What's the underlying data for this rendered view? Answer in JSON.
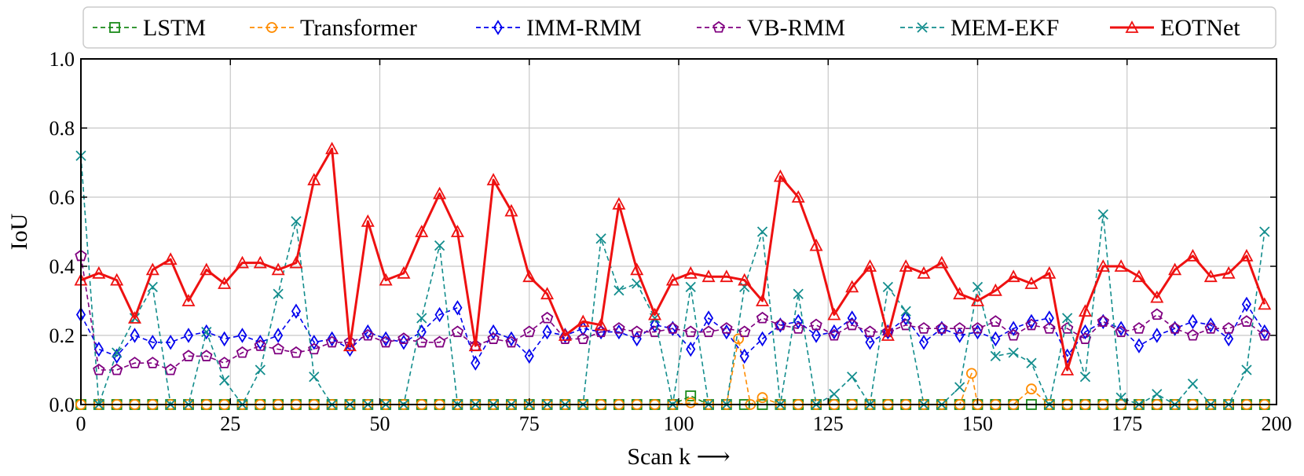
{
  "chart_data": {
    "type": "line",
    "xlabel": "Scan k ⟶",
    "ylabel": "IoU",
    "xlim": [
      0,
      200
    ],
    "ylim": [
      0,
      1.0
    ],
    "xticks": [
      "0",
      "25",
      "50",
      "75",
      "100",
      "125",
      "150",
      "175",
      "200"
    ],
    "yticks": [
      "0.0",
      "0.2",
      "0.4",
      "0.6",
      "0.8",
      "1.0"
    ],
    "grid": true,
    "legend": "top",
    "series": [
      {
        "name": "LSTM",
        "color": "#1a8a1a",
        "marker": "square",
        "style": "dashed",
        "x": [
          0,
          3,
          6,
          9,
          12,
          15,
          18,
          21,
          24,
          27,
          30,
          33,
          36,
          39,
          42,
          45,
          48,
          51,
          54,
          57,
          60,
          63,
          66,
          69,
          72,
          75,
          78,
          81,
          84,
          87,
          90,
          93,
          96,
          99,
          102,
          105,
          108,
          111,
          114,
          117,
          120,
          123,
          126,
          129,
          132,
          135,
          138,
          141,
          144,
          147,
          150,
          153,
          156,
          159,
          162,
          165,
          168,
          171,
          174,
          177,
          180,
          183,
          186,
          189,
          192,
          195,
          198
        ],
        "y": [
          0,
          0,
          0,
          0,
          0,
          0,
          0,
          0,
          0,
          0,
          0,
          0,
          0,
          0,
          0,
          0,
          0,
          0,
          0,
          0,
          0,
          0,
          0,
          0,
          0,
          0,
          0,
          0,
          0,
          0,
          0,
          0,
          0,
          0,
          0.025,
          0,
          0,
          0,
          0,
          0,
          0,
          0,
          0,
          0,
          0,
          0,
          0,
          0,
          0,
          0,
          0,
          0,
          0,
          0,
          0,
          0,
          0,
          0,
          0,
          0,
          0,
          0,
          0,
          0,
          0,
          0,
          0
        ]
      },
      {
        "name": "Transformer",
        "color": "#ff8c00",
        "marker": "circle",
        "style": "dashed",
        "x": [
          0,
          3,
          6,
          9,
          12,
          15,
          18,
          21,
          24,
          27,
          30,
          33,
          36,
          39,
          42,
          45,
          48,
          51,
          54,
          57,
          60,
          63,
          66,
          69,
          72,
          75,
          78,
          81,
          84,
          87,
          90,
          93,
          96,
          99,
          102,
          105,
          108,
          110,
          112,
          114,
          117,
          120,
          123,
          126,
          129,
          132,
          135,
          138,
          141,
          144,
          147,
          149,
          150,
          153,
          156,
          159,
          162,
          165,
          168,
          171,
          174,
          177,
          180,
          183,
          186,
          189,
          192,
          195,
          198
        ],
        "y": [
          0,
          0,
          0,
          0,
          0,
          0,
          0,
          0,
          0,
          0,
          0,
          0,
          0,
          0,
          0,
          0,
          0,
          0,
          0,
          0,
          0,
          0,
          0,
          0,
          0,
          0,
          0,
          0,
          0,
          0,
          0,
          0,
          0,
          0,
          0.005,
          0,
          0,
          0.19,
          0,
          0.02,
          0,
          0,
          0,
          0,
          0,
          0,
          0,
          0,
          0,
          0,
          0,
          0.09,
          0,
          0,
          0,
          0.045,
          0,
          0,
          0,
          0,
          0,
          0,
          0,
          0,
          0,
          0,
          0,
          0,
          0
        ]
      },
      {
        "name": "IMM-RMM",
        "color": "#0000ee",
        "marker": "diamond",
        "style": "dashed",
        "x": [
          0,
          3,
          6,
          9,
          12,
          15,
          18,
          21,
          24,
          27,
          30,
          33,
          36,
          39,
          42,
          45,
          48,
          51,
          54,
          57,
          60,
          63,
          66,
          69,
          72,
          75,
          78,
          81,
          84,
          87,
          90,
          93,
          96,
          99,
          102,
          105,
          108,
          111,
          114,
          117,
          120,
          123,
          126,
          129,
          132,
          135,
          138,
          141,
          144,
          147,
          150,
          153,
          156,
          159,
          162,
          165,
          168,
          171,
          174,
          177,
          180,
          183,
          186,
          189,
          192,
          195,
          198
        ],
        "y": [
          0.26,
          0.16,
          0.14,
          0.2,
          0.18,
          0.18,
          0.2,
          0.21,
          0.19,
          0.2,
          0.18,
          0.2,
          0.27,
          0.18,
          0.19,
          0.16,
          0.21,
          0.19,
          0.18,
          0.21,
          0.26,
          0.28,
          0.12,
          0.21,
          0.19,
          0.14,
          0.21,
          0.2,
          0.22,
          0.21,
          0.21,
          0.19,
          0.23,
          0.22,
          0.16,
          0.25,
          0.21,
          0.14,
          0.19,
          0.23,
          0.24,
          0.2,
          0.21,
          0.25,
          0.18,
          0.21,
          0.25,
          0.18,
          0.22,
          0.2,
          0.21,
          0.19,
          0.22,
          0.24,
          0.25,
          0.14,
          0.21,
          0.24,
          0.22,
          0.17,
          0.2,
          0.22,
          0.24,
          0.23,
          0.19,
          0.29,
          0.21
        ]
      },
      {
        "name": "VB-RMM",
        "color": "#800080",
        "marker": "pentagon",
        "style": "dashed",
        "x": [
          0,
          3,
          6,
          9,
          12,
          15,
          18,
          21,
          24,
          27,
          30,
          33,
          36,
          39,
          42,
          45,
          48,
          51,
          54,
          57,
          60,
          63,
          66,
          69,
          72,
          75,
          78,
          81,
          84,
          87,
          90,
          93,
          96,
          99,
          102,
          105,
          108,
          111,
          114,
          117,
          120,
          123,
          126,
          129,
          132,
          135,
          138,
          141,
          144,
          147,
          150,
          153,
          156,
          159,
          162,
          165,
          168,
          171,
          174,
          177,
          180,
          183,
          186,
          189,
          192,
          195,
          198
        ],
        "y": [
          0.43,
          0.1,
          0.1,
          0.12,
          0.12,
          0.1,
          0.14,
          0.14,
          0.12,
          0.15,
          0.17,
          0.16,
          0.15,
          0.16,
          0.18,
          0.18,
          0.2,
          0.18,
          0.19,
          0.18,
          0.18,
          0.21,
          0.17,
          0.19,
          0.18,
          0.21,
          0.25,
          0.19,
          0.19,
          0.21,
          0.22,
          0.21,
          0.21,
          0.22,
          0.21,
          0.21,
          0.22,
          0.21,
          0.25,
          0.23,
          0.22,
          0.23,
          0.2,
          0.23,
          0.21,
          0.21,
          0.23,
          0.22,
          0.22,
          0.22,
          0.22,
          0.24,
          0.2,
          0.23,
          0.22,
          0.22,
          0.19,
          0.24,
          0.21,
          0.22,
          0.26,
          0.22,
          0.2,
          0.22,
          0.22,
          0.24,
          0.2
        ]
      },
      {
        "name": "MEM-EKF",
        "color": "#138d8d",
        "marker": "x",
        "style": "dashed",
        "x": [
          0,
          3,
          6,
          9,
          12,
          15,
          18,
          21,
          24,
          27,
          30,
          33,
          36,
          39,
          42,
          45,
          48,
          51,
          54,
          57,
          60,
          63,
          66,
          69,
          72,
          75,
          78,
          81,
          84,
          87,
          90,
          93,
          96,
          99,
          102,
          105,
          108,
          111,
          114,
          117,
          120,
          123,
          126,
          129,
          132,
          135,
          138,
          141,
          144,
          147,
          150,
          153,
          156,
          159,
          162,
          165,
          168,
          171,
          174,
          177,
          180,
          183,
          186,
          189,
          192,
          195,
          198
        ],
        "y": [
          0.72,
          0,
          0.15,
          0.25,
          0.34,
          0,
          0,
          0.21,
          0.07,
          0,
          0.1,
          0.32,
          0.53,
          0.08,
          0,
          0,
          0,
          0,
          0,
          0.25,
          0.46,
          0,
          0,
          0,
          0,
          0,
          0,
          0,
          0,
          0.48,
          0.33,
          0.35,
          0.25,
          0,
          0.34,
          0,
          0,
          0.34,
          0.5,
          0,
          0.32,
          0,
          0.03,
          0.08,
          0,
          0.34,
          0.27,
          0,
          0,
          0.05,
          0.34,
          0.14,
          0.15,
          0.12,
          0,
          0.25,
          0.08,
          0.55,
          0.02,
          0,
          0.03,
          0,
          0.06,
          0,
          0,
          0.1,
          0.5
        ]
      },
      {
        "name": "EOTNet",
        "color": "#ee1111",
        "marker": "triangle",
        "style": "solid",
        "x": [
          0,
          3,
          6,
          9,
          12,
          15,
          18,
          21,
          24,
          27,
          30,
          33,
          36,
          39,
          42,
          45,
          48,
          51,
          54,
          57,
          60,
          63,
          66,
          69,
          72,
          75,
          78,
          81,
          84,
          87,
          90,
          93,
          96,
          99,
          102,
          105,
          108,
          111,
          114,
          117,
          120,
          123,
          126,
          129,
          132,
          135,
          138,
          141,
          144,
          147,
          150,
          153,
          156,
          159,
          162,
          165,
          168,
          171,
          174,
          177,
          180,
          183,
          186,
          189,
          192,
          195,
          198
        ],
        "y": [
          0.36,
          0.38,
          0.36,
          0.25,
          0.39,
          0.42,
          0.3,
          0.39,
          0.35,
          0.41,
          0.41,
          0.39,
          0.41,
          0.65,
          0.74,
          0.17,
          0.53,
          0.36,
          0.38,
          0.5,
          0.61,
          0.5,
          0.17,
          0.65,
          0.56,
          0.37,
          0.32,
          0.2,
          0.24,
          0.23,
          0.58,
          0.39,
          0.26,
          0.36,
          0.38,
          0.37,
          0.37,
          0.36,
          0.3,
          0.66,
          0.6,
          0.46,
          0.26,
          0.34,
          0.4,
          0.2,
          0.4,
          0.38,
          0.41,
          0.32,
          0.3,
          0.33,
          0.37,
          0.35,
          0.38,
          0.1,
          0.27,
          0.4,
          0.4,
          0.37,
          0.31,
          0.39,
          0.43,
          0.37,
          0.38,
          0.43,
          0.29
        ]
      }
    ]
  }
}
